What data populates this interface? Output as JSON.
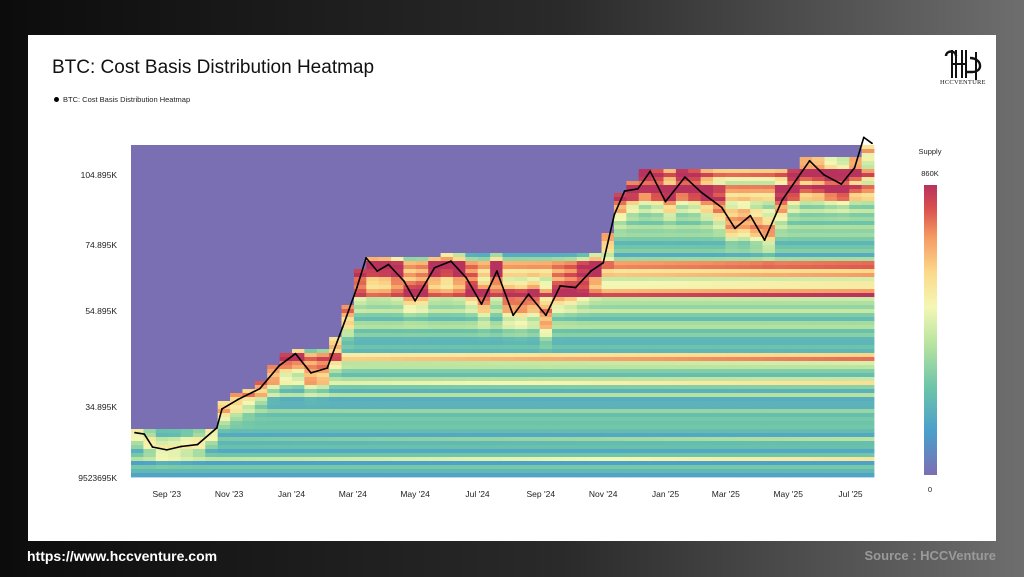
{
  "title": "BTC: Cost Basis Distribution Heatmap",
  "legend_label": "BTC: Cost Basis Distribution Heatmap",
  "logo_text": "HCCVENTURE",
  "footer": {
    "website": "https://www.hccventure.com",
    "source": "Source : HCCVenture"
  },
  "colorbar": {
    "title": "Supply",
    "max_label": "860K",
    "min_label": "0",
    "colors": [
      "#7b6fb3",
      "#4b9fcc",
      "#6cc4a9",
      "#b7e3a0",
      "#f4f7b4",
      "#fbd98a",
      "#f59a63",
      "#d9504e",
      "#b8325e"
    ]
  },
  "chart_data": {
    "type": "heatmap",
    "title": "BTC: Cost Basis Distribution Heatmap",
    "y_ticks": [
      "104.895K",
      "74.895K",
      "54.895K",
      "34.895K",
      "9523695K"
    ],
    "x_ticks": [
      "Sep '23",
      "Nov '23",
      "Jan '24",
      "Mar '24",
      "May '24",
      "Jul '24",
      "Sep '24",
      "Nov '24",
      "Jan '25",
      "Mar '25",
      "May '25",
      "Jul '25"
    ],
    "price_series": {
      "name": "BTC: Cost Basis Distribution Heatmap",
      "dates": [
        "2023-08-01",
        "2023-08-10",
        "2023-08-18",
        "2023-09-01",
        "2023-09-15",
        "2023-10-01",
        "2023-10-20",
        "2023-10-25",
        "2023-11-10",
        "2023-12-01",
        "2023-12-20",
        "2024-01-05",
        "2024-01-20",
        "2024-02-05",
        "2024-02-20",
        "2024-03-05",
        "2024-03-14",
        "2024-03-25",
        "2024-04-05",
        "2024-04-20",
        "2024-05-01",
        "2024-05-20",
        "2024-06-05",
        "2024-06-20",
        "2024-07-05",
        "2024-07-20",
        "2024-08-05",
        "2024-08-20",
        "2024-09-06",
        "2024-09-20",
        "2024-10-05",
        "2024-10-20",
        "2024-11-01",
        "2024-11-12",
        "2024-11-22",
        "2024-12-05",
        "2024-12-17",
        "2025-01-01",
        "2025-01-20",
        "2025-02-05",
        "2025-02-25",
        "2025-03-10",
        "2025-03-25",
        "2025-04-08",
        "2025-04-25",
        "2025-05-10",
        "2025-05-22",
        "2025-06-05",
        "2025-06-22",
        "2025-07-05",
        "2025-07-14",
        "2025-07-22"
      ],
      "values": [
        29500,
        29200,
        26500,
        25900,
        26600,
        27000,
        30500,
        34500,
        36500,
        38700,
        43500,
        46000,
        42000,
        43000,
        51500,
        62000,
        71000,
        67000,
        69000,
        64000,
        58000,
        68000,
        70000,
        65000,
        57000,
        67000,
        54000,
        60000,
        54000,
        62500,
        62000,
        67000,
        69500,
        88000,
        98000,
        99000,
        106500,
        93500,
        104000,
        97500,
        91000,
        82000,
        87500,
        77000,
        94000,
        103500,
        111000,
        105000,
        101000,
        108000,
        121000,
        118500
      ]
    },
    "color_scale": {
      "min": 0,
      "max": 860000,
      "label": "Supply"
    }
  }
}
